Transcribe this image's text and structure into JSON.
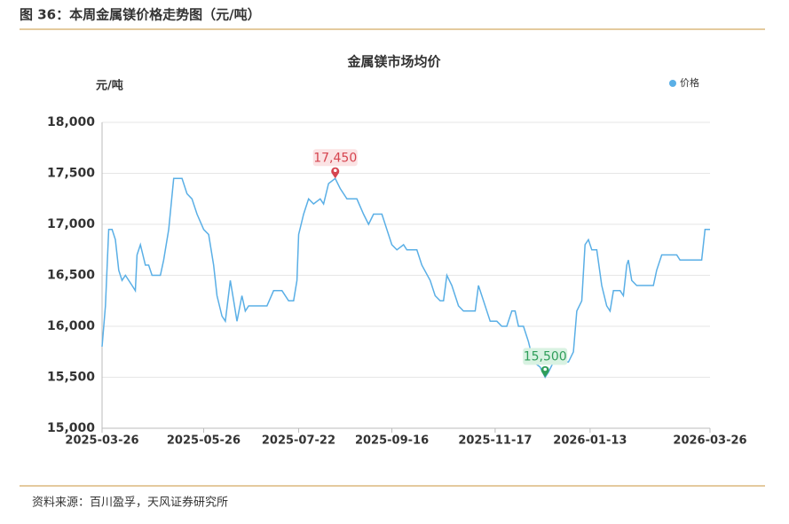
{
  "header": "图 36：本周金属镁价格走势图（元/吨）",
  "source": "资料来源：百川盈孚，天风证券研究所",
  "chart_data": {
    "type": "line",
    "title": "金属镁市场均价",
    "y_axis_label": "元/吨",
    "legend": "top-right",
    "grid": true,
    "xlim": [
      "2025-03-26",
      "2026-03-26"
    ],
    "xticks": [
      "2025-03-26",
      "2025-05-26",
      "2025-07-22",
      "2025-09-16",
      "2025-11-17",
      "2026-01-13",
      "2026-03-26"
    ],
    "ylim": [
      15000,
      18000
    ],
    "yticks": [
      {
        "value": 15000,
        "label": "15,000"
      },
      {
        "value": 15500,
        "label": "15,500"
      },
      {
        "value": 16000,
        "label": "16,000"
      },
      {
        "value": 16500,
        "label": "16,500"
      },
      {
        "value": 17000,
        "label": "17,000"
      },
      {
        "value": 17500,
        "label": "17,500"
      },
      {
        "value": 18000,
        "label": "18,000"
      }
    ],
    "x": [
      "2025-03-26",
      "2025-03-28",
      "2025-03-30",
      "2025-04-01",
      "2025-04-03",
      "2025-04-05",
      "2025-04-07",
      "2025-04-09",
      "2025-04-13",
      "2025-04-15",
      "2025-04-16",
      "2025-04-18",
      "2025-04-21",
      "2025-04-23",
      "2025-04-25",
      "2025-04-30",
      "2025-05-02",
      "2025-05-05",
      "2025-05-08",
      "2025-05-13",
      "2025-05-16",
      "2025-05-19",
      "2025-05-22",
      "2025-05-26",
      "2025-05-29",
      "2025-06-01",
      "2025-06-03",
      "2025-06-06",
      "2025-06-08",
      "2025-06-11",
      "2025-06-13",
      "2025-06-15",
      "2025-06-18",
      "2025-06-20",
      "2025-06-22",
      "2025-07-03",
      "2025-07-07",
      "2025-07-12",
      "2025-07-16",
      "2025-07-19",
      "2025-07-21",
      "2025-07-22",
      "2025-07-25",
      "2025-07-28",
      "2025-07-31",
      "2025-08-04",
      "2025-08-06",
      "2025-08-09",
      "2025-08-13",
      "2025-08-16",
      "2025-08-20",
      "2025-08-26",
      "2025-08-30",
      "2025-09-02",
      "2025-09-05",
      "2025-09-10",
      "2025-09-13",
      "2025-09-16",
      "2025-09-19",
      "2025-09-23",
      "2025-09-25",
      "2025-10-01",
      "2025-10-04",
      "2025-10-09",
      "2025-10-12",
      "2025-10-15",
      "2025-10-17",
      "2025-10-19",
      "2025-10-22",
      "2025-10-26",
      "2025-10-29",
      "2025-11-05",
      "2025-11-07",
      "2025-11-10",
      "2025-11-14",
      "2025-11-18",
      "2025-11-21",
      "2025-11-24",
      "2025-11-27",
      "2025-11-29",
      "2025-12-01",
      "2025-12-04",
      "2025-12-07",
      "2025-12-10",
      "2025-12-14",
      "2025-12-17",
      "2025-12-19",
      "2025-12-22",
      "2025-12-31",
      "2026-01-03",
      "2026-01-05",
      "2026-01-08",
      "2026-01-10",
      "2026-01-12",
      "2026-01-14",
      "2026-01-17",
      "2026-01-20",
      "2026-01-23",
      "2026-01-25",
      "2026-01-27",
      "2026-01-31",
      "2026-02-02",
      "2026-02-04",
      "2026-02-05",
      "2026-02-07",
      "2026-02-10",
      "2026-02-20",
      "2026-02-22",
      "2026-02-25",
      "2026-03-06",
      "2026-03-08",
      "2026-03-21",
      "2026-03-23",
      "2026-03-26"
    ],
    "series": [
      {
        "name": "价格",
        "color": "#5aafe6",
        "values": [
          15800,
          16200,
          16950,
          16950,
          16850,
          16550,
          16450,
          16500,
          16400,
          16350,
          16700,
          16800,
          16600,
          16600,
          16500,
          16500,
          16650,
          16950,
          17450,
          17450,
          17300,
          17250,
          17100,
          16950,
          16900,
          16600,
          16300,
          16100,
          16050,
          16450,
          16250,
          16050,
          16300,
          16150,
          16200,
          16200,
          16350,
          16350,
          16250,
          16250,
          16450,
          16900,
          17100,
          17250,
          17200,
          17250,
          17200,
          17400,
          17450,
          17350,
          17250,
          17250,
          17100,
          17000,
          17100,
          17100,
          16950,
          16800,
          16750,
          16800,
          16750,
          16750,
          16600,
          16450,
          16300,
          16250,
          16250,
          16500,
          16400,
          16200,
          16150,
          16150,
          16400,
          16250,
          16050,
          16050,
          16000,
          16000,
          16150,
          16150,
          16000,
          16000,
          15850,
          15650,
          15600,
          15500,
          15550,
          15650,
          15650,
          15750,
          16150,
          16250,
          16800,
          16850,
          16750,
          16750,
          16400,
          16200,
          16150,
          16350,
          16350,
          16300,
          16600,
          16650,
          16450,
          16400,
          16400,
          16550,
          16700,
          16700,
          16650,
          16650,
          16950,
          16950
        ]
      }
    ],
    "annotations": [
      {
        "x": "2025-08-13",
        "value": 17450,
        "label": "17,450",
        "color": "#d64550",
        "background": "#fbe3e4"
      },
      {
        "x": "2025-12-17",
        "value": 15500,
        "label": "15,500",
        "color": "#2f9e5a",
        "background": "#d9f2e2"
      }
    ]
  }
}
